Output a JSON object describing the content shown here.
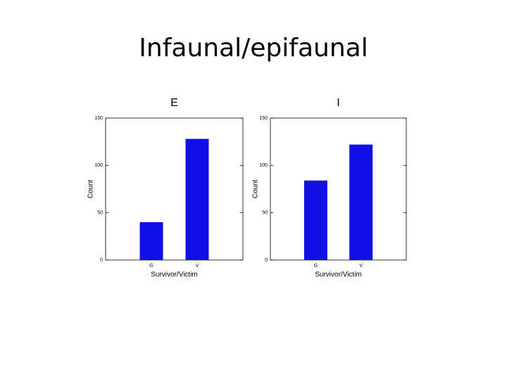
{
  "title": "Infaunal/epifaunal",
  "chart_data": [
    {
      "type": "bar",
      "title": "E",
      "categories": [
        "G",
        "V"
      ],
      "values": [
        40,
        128
      ],
      "color": "#1010e6",
      "xlabel": "Survivor/Victim",
      "ylabel": "Count",
      "ylim": [
        0,
        150
      ],
      "yticks": [
        0,
        50,
        100,
        150
      ]
    },
    {
      "type": "bar",
      "title": "I",
      "categories": [
        "G",
        "V"
      ],
      "values": [
        84,
        122
      ],
      "color": "#1010e6",
      "xlabel": "Survivor/Victim",
      "ylabel": "Count",
      "ylim": [
        0,
        150
      ],
      "yticks": [
        0,
        50,
        100,
        150
      ]
    }
  ]
}
